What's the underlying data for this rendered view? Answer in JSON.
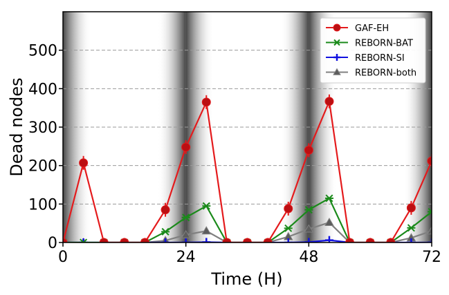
{
  "chart_data": {
    "type": "line",
    "title": "",
    "xlabel": "Time (H)",
    "ylabel": "Dead nodes",
    "xlim": [
      0,
      72
    ],
    "ylim": [
      0,
      600
    ],
    "xticks": [
      0,
      24,
      48,
      72
    ],
    "xtick_labels": [
      "0",
      "24",
      "48",
      "72"
    ],
    "yticks": [
      0,
      100,
      200,
      300,
      400,
      500
    ],
    "ytick_labels": [
      "0",
      "100",
      "200",
      "300",
      "400",
      "500"
    ],
    "grid": "horizontal dashed",
    "legend_position": "top-right",
    "x": [
      0,
      4,
      8,
      12,
      16,
      20,
      24,
      28,
      32,
      36,
      40,
      44,
      48,
      52,
      56,
      60,
      64,
      68,
      72
    ],
    "series": [
      {
        "name": "GAF-EH",
        "color": "#e41a1c",
        "marker": "circle",
        "values": [
          0,
          207,
          0,
          0,
          0,
          85,
          248,
          365,
          0,
          0,
          0,
          88,
          240,
          367,
          0,
          0,
          0,
          90,
          212
        ]
      },
      {
        "name": "REBORN-BAT",
        "color": "#1a8a1a",
        "marker": "x-star",
        "values": [
          0,
          0,
          0,
          0,
          0,
          28,
          65,
          95,
          0,
          0,
          0,
          37,
          85,
          115,
          0,
          0,
          0,
          38,
          80
        ]
      },
      {
        "name": "REBORN-SI",
        "color": "#1010e0",
        "marker": "plus",
        "values": [
          0,
          0,
          0,
          0,
          0,
          0,
          0,
          1,
          0,
          0,
          0,
          0,
          1,
          6,
          0,
          0,
          0,
          0,
          0
        ]
      },
      {
        "name": "REBORN-both",
        "color": "#808080",
        "marker": "triangle",
        "values": [
          0,
          0,
          0,
          0,
          0,
          5,
          20,
          30,
          0,
          0,
          0,
          15,
          35,
          52,
          0,
          0,
          0,
          12,
          30
        ]
      }
    ],
    "night_centers": [
      0,
      24,
      48,
      72
    ]
  }
}
